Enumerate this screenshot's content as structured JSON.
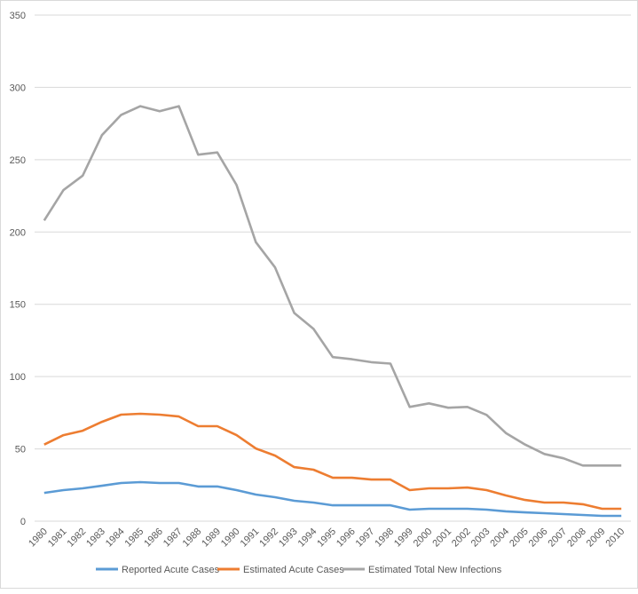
{
  "chart_data": {
    "type": "line",
    "title": "",
    "xlabel": "",
    "ylabel": "",
    "ylim": [
      0,
      350
    ],
    "yticks": [
      0,
      50,
      100,
      150,
      200,
      250,
      300,
      350
    ],
    "grid": true,
    "legend_position": "bottom",
    "categories": [
      "1980",
      "1981",
      "1982",
      "1983",
      "1984",
      "1985",
      "1986",
      "1987",
      "1988",
      "1989",
      "1990",
      "1991",
      "1992",
      "1993",
      "1994",
      "1995",
      "1996",
      "1997",
      "1998",
      "1999",
      "2000",
      "2001",
      "2002",
      "2003",
      "2004",
      "2005",
      "2006",
      "2007",
      "2008",
      "2009",
      "2010"
    ],
    "series": [
      {
        "name": "Reported Acute Cases",
        "color": "#5b9bd5",
        "values": [
          19.6,
          21.5,
          22.7,
          24.5,
          26.4,
          27,
          26.4,
          26.4,
          24,
          24,
          21.5,
          18.4,
          16.6,
          14.1,
          12.9,
          11,
          11,
          11,
          11,
          8,
          8.6,
          8.6,
          8.6,
          8,
          6.8,
          6.1,
          5.5,
          4.9,
          4.3,
          3.7,
          3.7
        ]
      },
      {
        "name": "Estimated Acute Cases",
        "color": "#ed7d31",
        "values": [
          53,
          59.5,
          62.6,
          68.7,
          73.7,
          74.3,
          73.7,
          72.4,
          65.7,
          65.7,
          59.5,
          50.3,
          45.4,
          37.4,
          35.6,
          30,
          30,
          28.8,
          28.8,
          21.5,
          22.7,
          22.7,
          23.3,
          21.5,
          17.8,
          14.7,
          12.9,
          12.9,
          11.7,
          8.6,
          8.6
        ]
      },
      {
        "name": "Estimated Total New Infections",
        "color": "#a5a5a5",
        "values": [
          208,
          229,
          239,
          267,
          281,
          287,
          283.5,
          287,
          253.5,
          255,
          232.5,
          193,
          175.5,
          144,
          133,
          113.5,
          112,
          110,
          109,
          79,
          81.5,
          78.5,
          79,
          73.5,
          61,
          53,
          46.5,
          43.5,
          38.5,
          38.5,
          38.5
        ]
      }
    ]
  }
}
